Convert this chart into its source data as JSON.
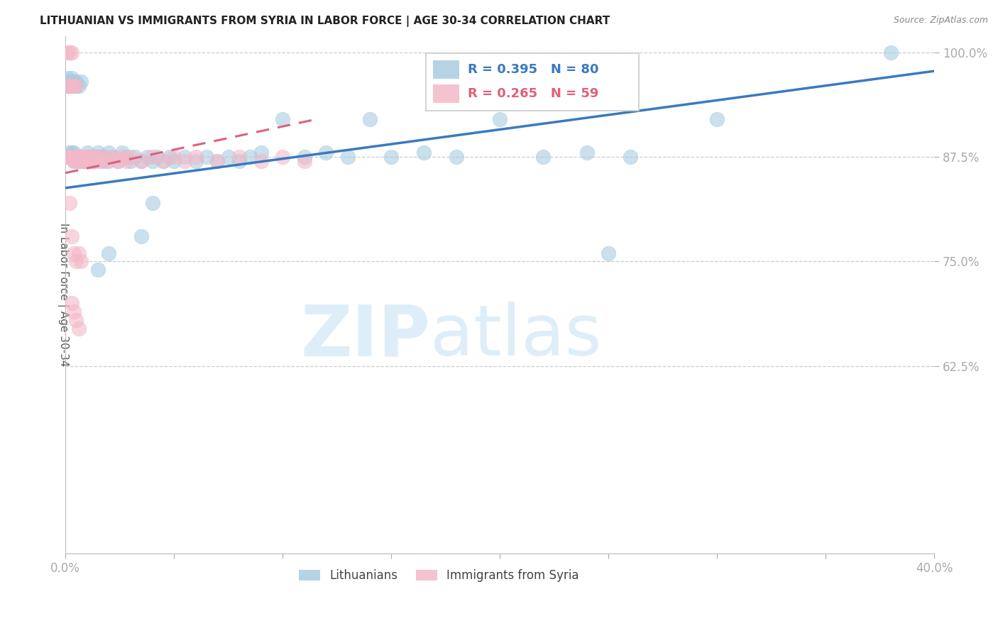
{
  "title": "LITHUANIAN VS IMMIGRANTS FROM SYRIA IN LABOR FORCE | AGE 30-34 CORRELATION CHART",
  "source": "Source: ZipAtlas.com",
  "ylabel": "In Labor Force | Age 30-34",
  "xlim": [
    0.0,
    0.4
  ],
  "ylim": [
    0.4,
    1.02
  ],
  "yticks": [
    0.625,
    0.75,
    0.875,
    1.0
  ],
  "ytick_labels": [
    "62.5%",
    "75.0%",
    "87.5%",
    "100.0%"
  ],
  "xticks": [
    0.0,
    0.05,
    0.1,
    0.15,
    0.2,
    0.25,
    0.3,
    0.35,
    0.4
  ],
  "xtick_labels": [
    "0.0%",
    "",
    "",
    "",
    "",
    "",
    "",
    "",
    "40.0%"
  ],
  "blue_R": 0.395,
  "blue_N": 80,
  "pink_R": 0.265,
  "pink_N": 59,
  "legend_labels": [
    "Lithuanians",
    "Immigrants from Syria"
  ],
  "blue_color": "#a8cce0",
  "pink_color": "#f4b8c8",
  "blue_line_color": "#3a7abf",
  "pink_line_color": "#e0607a",
  "axis_color": "#6baed6",
  "grid_color": "#cccccc",
  "blue_scatter_x": [
    0.001,
    0.001,
    0.001,
    0.002,
    0.002,
    0.002,
    0.002,
    0.003,
    0.003,
    0.003,
    0.003,
    0.004,
    0.004,
    0.004,
    0.005,
    0.005,
    0.005,
    0.005,
    0.006,
    0.006,
    0.006,
    0.007,
    0.007,
    0.007,
    0.008,
    0.008,
    0.009,
    0.009,
    0.01,
    0.01,
    0.011,
    0.012,
    0.013,
    0.014,
    0.015,
    0.016,
    0.017,
    0.018,
    0.019,
    0.02,
    0.022,
    0.024,
    0.026,
    0.028,
    0.03,
    0.032,
    0.035,
    0.038,
    0.04,
    0.042,
    0.045,
    0.048,
    0.05,
    0.055,
    0.06,
    0.065,
    0.07,
    0.075,
    0.08,
    0.085,
    0.09,
    0.1,
    0.11,
    0.12,
    0.13,
    0.14,
    0.15,
    0.165,
    0.18,
    0.2,
    0.22,
    0.24,
    0.26,
    0.3,
    0.035,
    0.04,
    0.015,
    0.02,
    0.38,
    0.25
  ],
  "blue_scatter_y": [
    0.97,
    0.96,
    0.875,
    0.965,
    0.96,
    0.88,
    0.875,
    0.97,
    0.965,
    0.88,
    0.875,
    0.96,
    0.88,
    0.87,
    0.96,
    0.965,
    0.875,
    0.87,
    0.96,
    0.875,
    0.87,
    0.965,
    0.875,
    0.87,
    0.875,
    0.87,
    0.875,
    0.87,
    0.88,
    0.87,
    0.875,
    0.875,
    0.87,
    0.875,
    0.88,
    0.875,
    0.87,
    0.875,
    0.87,
    0.88,
    0.875,
    0.87,
    0.88,
    0.875,
    0.87,
    0.875,
    0.87,
    0.875,
    0.87,
    0.875,
    0.87,
    0.875,
    0.87,
    0.875,
    0.87,
    0.875,
    0.87,
    0.875,
    0.87,
    0.875,
    0.88,
    0.92,
    0.875,
    0.88,
    0.875,
    0.92,
    0.875,
    0.88,
    0.875,
    0.92,
    0.875,
    0.88,
    0.875,
    0.92,
    0.78,
    0.82,
    0.74,
    0.76,
    1.0,
    0.76
  ],
  "pink_scatter_x": [
    0.001,
    0.001,
    0.001,
    0.002,
    0.002,
    0.002,
    0.003,
    0.003,
    0.003,
    0.004,
    0.004,
    0.004,
    0.005,
    0.005,
    0.005,
    0.006,
    0.006,
    0.007,
    0.007,
    0.008,
    0.008,
    0.009,
    0.009,
    0.01,
    0.01,
    0.011,
    0.012,
    0.013,
    0.014,
    0.015,
    0.016,
    0.018,
    0.02,
    0.022,
    0.024,
    0.026,
    0.028,
    0.03,
    0.035,
    0.04,
    0.045,
    0.05,
    0.055,
    0.06,
    0.07,
    0.08,
    0.09,
    0.1,
    0.11,
    0.003,
    0.004,
    0.005,
    0.002,
    0.006,
    0.007,
    0.003,
    0.004,
    0.005,
    0.006
  ],
  "pink_scatter_y": [
    1.0,
    0.96,
    0.875,
    1.0,
    0.96,
    0.875,
    1.0,
    0.96,
    0.875,
    0.96,
    0.875,
    0.87,
    0.96,
    0.875,
    0.87,
    0.875,
    0.87,
    0.875,
    0.87,
    0.875,
    0.87,
    0.875,
    0.87,
    0.875,
    0.87,
    0.875,
    0.87,
    0.875,
    0.87,
    0.875,
    0.87,
    0.875,
    0.87,
    0.875,
    0.87,
    0.875,
    0.87,
    0.875,
    0.87,
    0.875,
    0.87,
    0.875,
    0.87,
    0.875,
    0.87,
    0.875,
    0.87,
    0.875,
    0.87,
    0.78,
    0.76,
    0.75,
    0.82,
    0.76,
    0.75,
    0.7,
    0.69,
    0.68,
    0.67
  ],
  "blue_line_x": [
    0.0,
    0.4
  ],
  "blue_line_y": [
    0.838,
    0.978
  ],
  "pink_line_x": [
    0.0,
    0.115
  ],
  "pink_line_y": [
    0.856,
    0.92
  ],
  "pink_line_style": "dashed"
}
